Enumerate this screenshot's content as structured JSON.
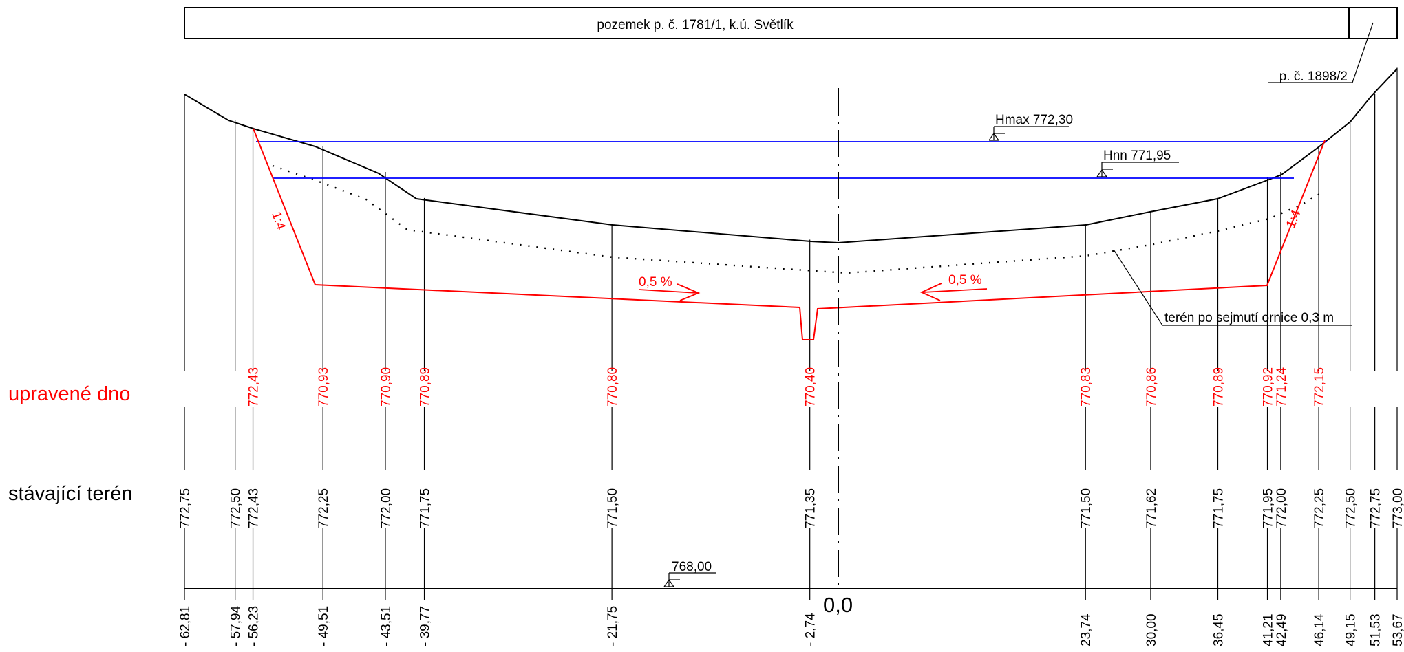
{
  "parcel_bar": {
    "main": "pozemek p. č. 1781/1, k.ú. Světlík",
    "side": "p. č. 1898/2"
  },
  "row_labels": {
    "bed": "upravené dno",
    "terrain": "stávající terén"
  },
  "water_levels": {
    "hmax": "Hmax 772,30",
    "hnn": "Hnn 771,95"
  },
  "datum": "768,00",
  "centerline_label": "0,0",
  "terrain_note": "terén po sejmutí ornice 0,3 m",
  "slope_left": "1:4",
  "slope_right": "1:4",
  "gradient_left": "0,5 %",
  "gradient_right": "0,5 %",
  "colors": {
    "design": "#ff0000",
    "water": "#0000ff",
    "terrain": "#000000"
  },
  "stations": [
    {
      "offset": -62.81,
      "offset_label": "- 62,81",
      "terrain": "772,75",
      "terrain_value": 772.75,
      "bed": ""
    },
    {
      "offset": -57.94,
      "offset_label": "- 57,94",
      "terrain": "772,50",
      "terrain_value": 772.5,
      "bed": ""
    },
    {
      "offset": -56.23,
      "offset_label": "- 56,23",
      "terrain": "772,43",
      "terrain_value": 772.43,
      "bed": "772,43"
    },
    {
      "offset": -49.51,
      "offset_label": "- 49,51",
      "terrain": "772,25",
      "terrain_value": 772.25,
      "bed": "770,93"
    },
    {
      "offset": -43.51,
      "offset_label": "- 43,51",
      "terrain": "772,00",
      "terrain_value": 772.0,
      "bed": "770,90"
    },
    {
      "offset": -39.77,
      "offset_label": "- 39,77",
      "terrain": "771,75",
      "terrain_value": 771.75,
      "bed": "770,89"
    },
    {
      "offset": -21.75,
      "offset_label": "- 21,75",
      "terrain": "771,50",
      "terrain_value": 771.5,
      "bed": "770,80"
    },
    {
      "offset": -2.74,
      "offset_label": "- 2,74",
      "terrain": "771,35",
      "terrain_value": 771.35,
      "bed": "770,40"
    },
    {
      "offset": 23.74,
      "offset_label": "23,74",
      "terrain": "771,50",
      "terrain_value": 771.5,
      "bed": "770,83"
    },
    {
      "offset": 30.0,
      "offset_label": "30,00",
      "terrain": "771,62",
      "terrain_value": 771.62,
      "bed": "770,86"
    },
    {
      "offset": 36.45,
      "offset_label": "36,45",
      "terrain": "771,75",
      "terrain_value": 771.75,
      "bed": "770,89"
    },
    {
      "offset": 41.21,
      "offset_label": "41,21",
      "terrain": "771,95",
      "terrain_value": 771.95,
      "bed": "770,92"
    },
    {
      "offset": 42.49,
      "offset_label": "42,49",
      "terrain": "772,00",
      "terrain_value": 772.0,
      "bed": "771,24"
    },
    {
      "offset": 46.14,
      "offset_label": "46,14",
      "terrain": "772,25",
      "terrain_value": 772.25,
      "bed": "772,15"
    },
    {
      "offset": 49.15,
      "offset_label": "49,15",
      "terrain": "772,50",
      "terrain_value": 772.5,
      "bed": ""
    },
    {
      "offset": 51.53,
      "offset_label": "51,53",
      "terrain": "772,75",
      "terrain_value": 772.75,
      "bed": ""
    },
    {
      "offset": 53.67,
      "offset_label": "53,67",
      "terrain": "773,00",
      "terrain_value": 773.0,
      "bed": ""
    }
  ]
}
